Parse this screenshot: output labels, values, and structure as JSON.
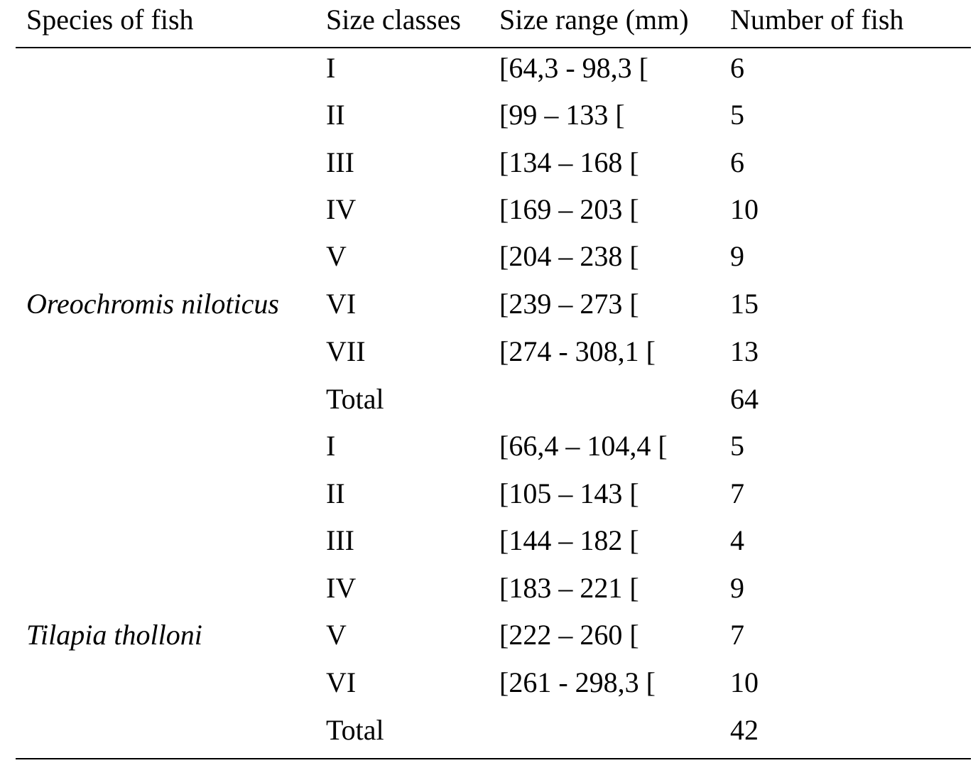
{
  "table": {
    "headers": [
      "Species of fish",
      "Size classes",
      "Size range (mm)",
      "Number of fish"
    ],
    "groups": [
      {
        "species": "Oreochromis niloticus",
        "rows": [
          {
            "size_class": "I",
            "size_range": "[64,3 - 98,3 [",
            "number": "6"
          },
          {
            "size_class": "II",
            "size_range": "[99 – 133 [",
            "number": "5"
          },
          {
            "size_class": "III",
            "size_range": "[134 – 168 [",
            "number": "6"
          },
          {
            "size_class": "IV",
            "size_range": "[169 – 203 [",
            "number": "10"
          },
          {
            "size_class": "V",
            "size_range": "[204 – 238 [",
            "number": "9"
          },
          {
            "size_class": "VI",
            "size_range": "[239 – 273 [",
            "number": "15"
          },
          {
            "size_class": "VII",
            "size_range": "[274 - 308,1 [",
            "number": "13"
          },
          {
            "size_class": "Total",
            "size_range": "",
            "number": "64"
          }
        ]
      },
      {
        "species": "Tilapia tholloni",
        "rows": [
          {
            "size_class": "I",
            "size_range": "[66,4 – 104,4 [",
            "number": "5"
          },
          {
            "size_class": "II",
            "size_range": "[105 – 143 [",
            "number": "7"
          },
          {
            "size_class": "III",
            "size_range": "[144 – 182 [",
            "number": "4"
          },
          {
            "size_class": "IV",
            "size_range": "[183 – 221 [",
            "number": "9"
          },
          {
            "size_class": "V",
            "size_range": "[222 – 260 [",
            "number": "7"
          },
          {
            "size_class": "VI",
            "size_range": "[261 - 298,3 [",
            "number": "10"
          },
          {
            "size_class": "Total",
            "size_range": "",
            "number": "42"
          }
        ]
      }
    ]
  }
}
